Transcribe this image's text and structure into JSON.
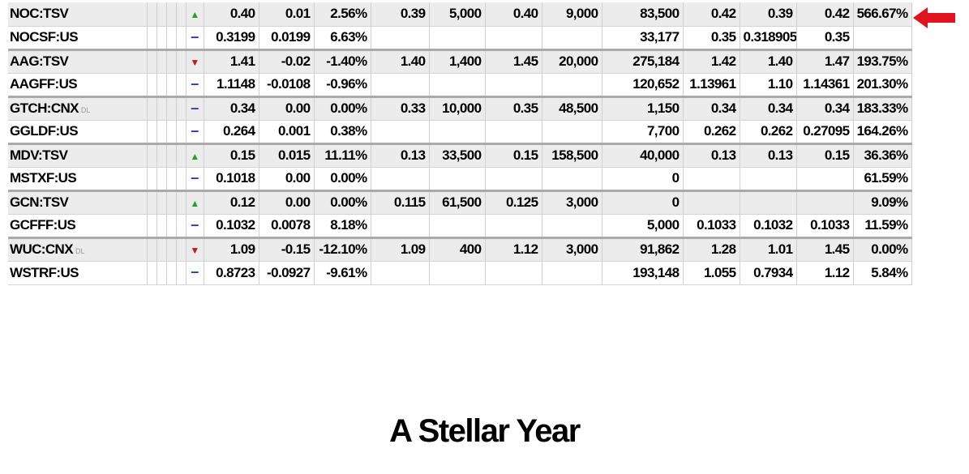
{
  "colors": {
    "positive": "#1fa51f",
    "negative": "#e01010",
    "unchanged": "#1e3cc8",
    "arrow": "#e0141e"
  },
  "pointer": {
    "icon": "left-arrow-icon"
  },
  "rows": [
    {
      "symbol": "NOC:TSV",
      "dl": "",
      "ind": "up",
      "last": "0.40",
      "chg": "0.01",
      "pct": "2.56%",
      "bid": "0.39",
      "bidsize": "5,000",
      "ask": "0.40",
      "asksize": "9,000",
      "volume": "83,500",
      "open": "0.42",
      "low": "0.39",
      "high": "0.42",
      "ytd": "566.67%",
      "chg_dir": "pos",
      "ytd_dir": "pos"
    },
    {
      "symbol": "NOCSF:US",
      "dl": "",
      "ind": "flat",
      "last": "0.3199",
      "chg": "0.0199",
      "pct": "6.63%",
      "bid": "",
      "bidsize": "",
      "ask": "",
      "asksize": "",
      "volume": "33,177",
      "open": "0.35",
      "low": "0.318905",
      "high": "0.35",
      "ytd": "",
      "chg_dir": "pos",
      "ytd_dir": "pos"
    },
    {
      "symbol": "AAG:TSV",
      "dl": "",
      "ind": "down",
      "last": "1.41",
      "chg": "-0.02",
      "pct": "-1.40%",
      "bid": "1.40",
      "bidsize": "1,400",
      "ask": "1.45",
      "asksize": "20,000",
      "volume": "275,184",
      "open": "1.42",
      "low": "1.40",
      "high": "1.47",
      "ytd": "193.75%",
      "chg_dir": "neg",
      "ytd_dir": "pos"
    },
    {
      "symbol": "AAGFF:US",
      "dl": "",
      "ind": "flat",
      "last": "1.1148",
      "chg": "-0.0108",
      "pct": "-0.96%",
      "bid": "",
      "bidsize": "",
      "ask": "",
      "asksize": "",
      "volume": "120,652",
      "open": "1.13961",
      "low": "1.10",
      "high": "1.14361",
      "ytd": "201.30%",
      "chg_dir": "neg",
      "ytd_dir": "pos"
    },
    {
      "symbol": "GTCH:CNX",
      "dl": "DL",
      "ind": "flat",
      "last": "0.34",
      "chg": "0.00",
      "pct": "0.00%",
      "bid": "0.33",
      "bidsize": "10,000",
      "ask": "0.35",
      "asksize": "48,500",
      "volume": "1,150",
      "open": "0.34",
      "low": "0.34",
      "high": "0.34",
      "ytd": "183.33%",
      "chg_dir": "none",
      "ytd_dir": "pos"
    },
    {
      "symbol": "GGLDF:US",
      "dl": "",
      "ind": "flat",
      "last": "0.264",
      "chg": "0.001",
      "pct": "0.38%",
      "bid": "",
      "bidsize": "",
      "ask": "",
      "asksize": "",
      "volume": "7,700",
      "open": "0.262",
      "low": "0.262",
      "high": "0.27095",
      "ytd": "164.26%",
      "chg_dir": "pos",
      "ytd_dir": "pos"
    },
    {
      "symbol": "MDV:TSV",
      "dl": "",
      "ind": "up",
      "last": "0.15",
      "chg": "0.015",
      "pct": "11.11%",
      "bid": "0.13",
      "bidsize": "33,500",
      "ask": "0.15",
      "asksize": "158,500",
      "volume": "40,000",
      "open": "0.13",
      "low": "0.13",
      "high": "0.15",
      "ytd": "36.36%",
      "chg_dir": "pos",
      "ytd_dir": "pos"
    },
    {
      "symbol": "MSTXF:US",
      "dl": "",
      "ind": "flat",
      "last": "0.1018",
      "chg": "0.00",
      "pct": "0.00%",
      "bid": "",
      "bidsize": "",
      "ask": "",
      "asksize": "",
      "volume": "0",
      "open": "",
      "low": "",
      "high": "",
      "ytd": "61.59%",
      "chg_dir": "none",
      "ytd_dir": "pos"
    },
    {
      "symbol": "GCN:TSV",
      "dl": "",
      "ind": "up",
      "last": "0.12",
      "chg": "0.00",
      "pct": "0.00%",
      "bid": "0.115",
      "bidsize": "61,500",
      "ask": "0.125",
      "asksize": "3,000",
      "volume": "0",
      "open": "",
      "low": "",
      "high": "",
      "ytd": "9.09%",
      "chg_dir": "none",
      "ytd_dir": "pos"
    },
    {
      "symbol": "GCFFF:US",
      "dl": "",
      "ind": "flat",
      "last": "0.1032",
      "chg": "0.0078",
      "pct": "8.18%",
      "bid": "",
      "bidsize": "",
      "ask": "",
      "asksize": "",
      "volume": "5,000",
      "open": "0.1033",
      "low": "0.1032",
      "high": "0.1033",
      "ytd": "11.59%",
      "chg_dir": "pos",
      "ytd_dir": "pos"
    },
    {
      "symbol": "WUC:CNX",
      "dl": "DL",
      "ind": "down",
      "last": "1.09",
      "chg": "-0.15",
      "pct": "-12.10%",
      "bid": "1.09",
      "bidsize": "400",
      "ask": "1.12",
      "asksize": "3,000",
      "volume": "91,862",
      "open": "1.28",
      "low": "1.01",
      "high": "1.45",
      "ytd": "0.00%",
      "chg_dir": "neg",
      "ytd_dir": "none"
    },
    {
      "symbol": "WSTRF:US",
      "dl": "",
      "ind": "flat",
      "last": "0.8723",
      "chg": "-0.0927",
      "pct": "-9.61%",
      "bid": "",
      "bidsize": "",
      "ask": "",
      "asksize": "",
      "volume": "193,148",
      "open": "1.055",
      "low": "0.7934",
      "high": "1.12",
      "ytd": "5.84%",
      "chg_dir": "neg",
      "ytd_dir": "pos"
    }
  ],
  "caption": "A Stellar Year"
}
